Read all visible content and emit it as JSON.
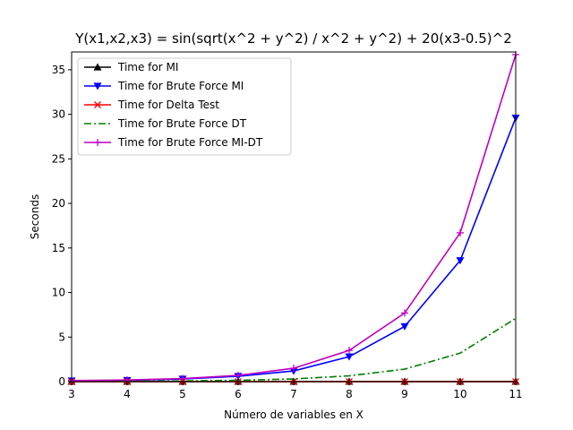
{
  "chart_data": {
    "type": "line",
    "title": "Y(x1,x2,x3) = sin(sqrt(x^2 + y^2) / x^2 + y^2) + 20(x3-0.5)^2",
    "xlabel": "Número de variables en X",
    "ylabel": "Seconds",
    "x": [
      3,
      4,
      5,
      6,
      7,
      8,
      9,
      10,
      11
    ],
    "xlim": [
      3,
      11
    ],
    "ylim": [
      0,
      37
    ],
    "xticks": [
      3,
      4,
      5,
      6,
      7,
      8,
      9,
      10,
      11
    ],
    "yticks": [
      0,
      5,
      10,
      15,
      20,
      25,
      30,
      35
    ],
    "legend_position": "top-left",
    "series": [
      {
        "name": "Time for MI",
        "color": "#000000",
        "style": "solid",
        "marker": "triangle-up",
        "values": [
          0.01,
          0.01,
          0.01,
          0.01,
          0.01,
          0.01,
          0.01,
          0.01,
          0.01
        ]
      },
      {
        "name": "Time for Brute Force MI",
        "color": "#0000ff",
        "style": "solid",
        "marker": "triangle-down",
        "values": [
          0.1,
          0.15,
          0.3,
          0.6,
          1.2,
          2.8,
          6.2,
          13.6,
          29.6
        ]
      },
      {
        "name": "Time for Delta Test",
        "color": "#ff0000",
        "style": "solid",
        "marker": "x",
        "values": [
          0.0,
          0.0,
          0.0,
          0.0,
          0.0,
          0.0,
          0.0,
          0.0,
          0.0
        ]
      },
      {
        "name": "Time for Brute Force DT",
        "color": "#008000",
        "style": "dashdot",
        "marker": "none",
        "values": [
          0.02,
          0.04,
          0.08,
          0.15,
          0.3,
          0.65,
          1.4,
          3.2,
          7.1
        ]
      },
      {
        "name": "Time for Brute Force MI-DT",
        "color": "#bf00bf",
        "style": "solid",
        "marker": "plus",
        "values": [
          0.12,
          0.18,
          0.35,
          0.7,
          1.5,
          3.5,
          7.7,
          16.7,
          36.7
        ]
      }
    ]
  }
}
